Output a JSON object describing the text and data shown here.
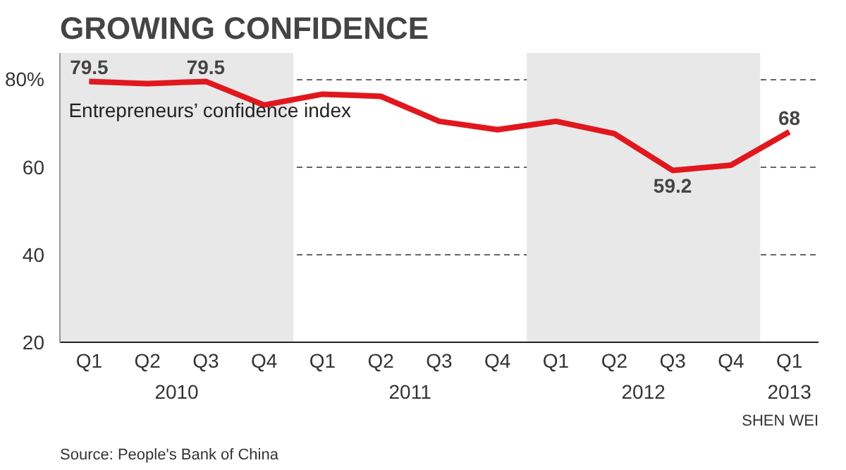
{
  "chart_data": {
    "type": "line",
    "title": "GROWING CONFIDENCE",
    "categories": [
      "Q1",
      "Q2",
      "Q3",
      "Q4",
      "Q1",
      "Q2",
      "Q3",
      "Q4",
      "Q1",
      "Q2",
      "Q3",
      "Q4",
      "Q1"
    ],
    "series": [
      {
        "name": "Entrepreneurs’ confidence index",
        "color": "#e1171e",
        "values": [
          79.5,
          79.0,
          79.5,
          74.1,
          76.6,
          76.1,
          70.4,
          68.5,
          70.4,
          67.6,
          59.2,
          60.4,
          68
        ],
        "value_labels": [
          "79.5",
          null,
          "79.5",
          null,
          null,
          null,
          null,
          null,
          null,
          null,
          "59.2",
          null,
          "68"
        ]
      }
    ],
    "ylim": [
      20,
      86
    ],
    "yticks": [
      20,
      40,
      60,
      {
        "value": 80,
        "label": "80%"
      }
    ],
    "grid": "y",
    "line_style": "solid",
    "marker": "none",
    "legend": false,
    "annotations": [
      "2010",
      "2011",
      "2012",
      "2013",
      "Source: People's Bank of China",
      "SHEN WEI"
    ]
  }
}
